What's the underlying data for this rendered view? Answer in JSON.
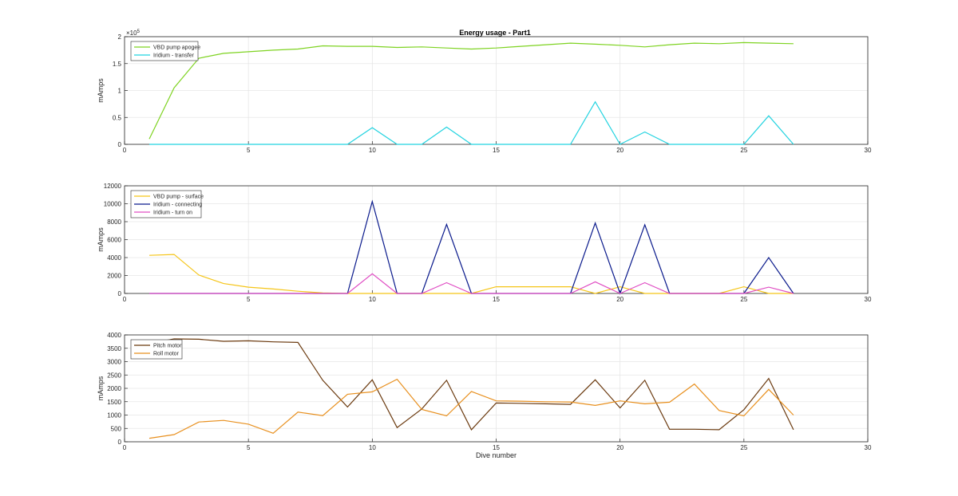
{
  "figure_title": "Energy usage - Part1",
  "chart_data": [
    {
      "type": "line",
      "title": "Energy usage - Part1",
      "xlabel": "",
      "ylabel": "mAmps",
      "exponent_label": "×10",
      "exponent_power": "5",
      "xlim": [
        0,
        30
      ],
      "ylim": [
        0,
        2
      ],
      "xticks": [
        "0",
        "5",
        "10",
        "15",
        "20",
        "25",
        "30"
      ],
      "yticks": [
        "0",
        "0.5",
        "1",
        "1.5",
        "2"
      ],
      "grid": true,
      "legend_position": "top-left",
      "x": [
        1,
        2,
        3,
        4,
        5,
        6,
        7,
        8,
        9,
        10,
        11,
        12,
        13,
        14,
        15,
        16,
        17,
        18,
        19,
        20,
        21,
        22,
        23,
        24,
        25,
        26,
        27
      ],
      "series": [
        {
          "name": "VBD pump apogee",
          "color": "#7ed321",
          "values": [
            0.1,
            1.05,
            1.6,
            1.69,
            1.72,
            1.75,
            1.77,
            1.83,
            1.82,
            1.82,
            1.8,
            1.81,
            1.79,
            1.77,
            1.79,
            1.82,
            1.85,
            1.88,
            1.86,
            1.84,
            1.81,
            1.85,
            1.88,
            1.87,
            1.89,
            1.88,
            1.87
          ]
        },
        {
          "name": "Iridium - transfer",
          "color": "#22d3e0",
          "values": [
            0,
            0,
            0,
            0,
            0,
            0,
            0,
            0,
            0,
            0.31,
            0,
            0,
            0.32,
            0,
            0,
            0,
            0,
            0,
            0.79,
            0,
            0.23,
            0,
            0,
            0,
            0,
            0.53,
            0
          ]
        }
      ]
    },
    {
      "type": "line",
      "xlabel": "",
      "ylabel": "mAmps",
      "xlim": [
        0,
        30
      ],
      "ylim": [
        0,
        12000
      ],
      "xticks": [
        "0",
        "5",
        "10",
        "15",
        "20",
        "25",
        "30"
      ],
      "yticks": [
        "0",
        "2000",
        "4000",
        "6000",
        "8000",
        "10000",
        "12000"
      ],
      "grid": true,
      "legend_position": "top-left",
      "x": [
        1,
        2,
        3,
        4,
        5,
        6,
        7,
        8,
        9,
        10,
        11,
        12,
        13,
        14,
        15,
        16,
        17,
        18,
        19,
        20,
        21,
        22,
        23,
        24,
        25,
        26,
        27
      ],
      "series": [
        {
          "name": "VBD pump - surface",
          "color": "#f5c518",
          "values": [
            4250,
            4350,
            2050,
            1100,
            700,
            500,
            250,
            50,
            0,
            0,
            0,
            0,
            0,
            0,
            750,
            750,
            750,
            750,
            0,
            750,
            0,
            0,
            0,
            0,
            750,
            0,
            0
          ]
        },
        {
          "name": "Iridium - connecting",
          "color": "#0a1a8c",
          "values": [
            0,
            0,
            0,
            0,
            0,
            0,
            0,
            0,
            0,
            10250,
            0,
            0,
            7700,
            0,
            0,
            0,
            0,
            0,
            7850,
            0,
            7650,
            0,
            0,
            0,
            0,
            4000,
            0
          ]
        },
        {
          "name": "Iridium - turn on",
          "color": "#e04fc4",
          "values": [
            0,
            0,
            0,
            0,
            0,
            0,
            0,
            0,
            0,
            2200,
            0,
            0,
            1200,
            0,
            0,
            0,
            0,
            0,
            1300,
            0,
            1200,
            0,
            0,
            0,
            0,
            700,
            0
          ]
        }
      ]
    },
    {
      "type": "line",
      "xlabel": "Dive number",
      "ylabel": "mAmps",
      "xlim": [
        0,
        30
      ],
      "ylim": [
        0,
        4000
      ],
      "xticks": [
        "0",
        "5",
        "10",
        "15",
        "20",
        "25",
        "30"
      ],
      "yticks": [
        "0",
        "500",
        "1000",
        "1500",
        "2000",
        "2500",
        "3000",
        "3500",
        "4000"
      ],
      "grid": true,
      "legend_position": "top-left",
      "x": [
        1,
        2,
        3,
        4,
        5,
        6,
        7,
        8,
        9,
        10,
        11,
        12,
        13,
        14,
        15,
        16,
        17,
        18,
        19,
        20,
        21,
        22,
        23,
        24,
        25,
        26,
        27
      ],
      "series": [
        {
          "name": "Pitch motor",
          "color": "#6b3a0f",
          "values": [
            3680,
            3850,
            3840,
            3760,
            3780,
            3740,
            3720,
            2300,
            1300,
            2320,
            530,
            1230,
            2300,
            450,
            1450,
            1440,
            1420,
            1400,
            2320,
            1270,
            2300,
            470,
            470,
            450,
            1200,
            2370,
            450
          ]
        },
        {
          "name": "Roll motor",
          "color": "#e8901f",
          "values": [
            130,
            270,
            740,
            800,
            660,
            320,
            1110,
            980,
            1780,
            1870,
            2340,
            1210,
            970,
            1880,
            1530,
            1520,
            1500,
            1490,
            1360,
            1530,
            1420,
            1480,
            2160,
            1170,
            970,
            1960,
            1000
          ]
        }
      ]
    }
  ]
}
